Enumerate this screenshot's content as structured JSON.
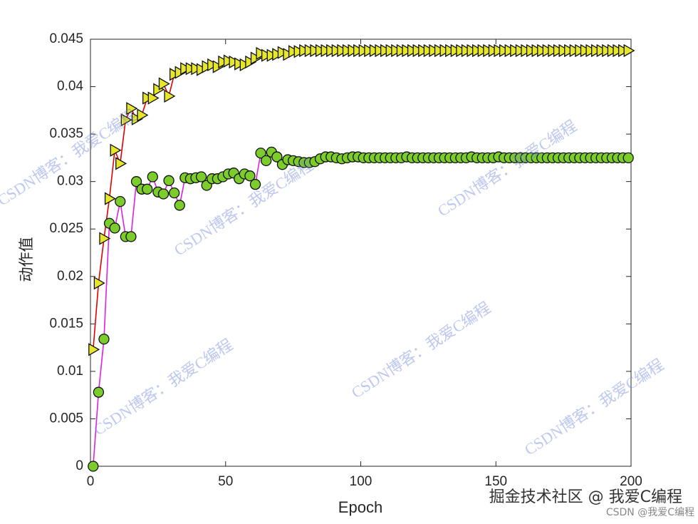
{
  "chart_data": {
    "type": "line",
    "xlabel": "Epoch",
    "ylabel": "动作值",
    "xlim": [
      0,
      200
    ],
    "xticks": [
      0,
      50,
      100,
      150,
      200
    ],
    "ylim": [
      0,
      0.045
    ],
    "yticks": [
      0,
      0.005,
      0.01,
      0.015,
      0.02,
      0.025,
      0.03,
      0.035,
      0.04,
      0.045
    ],
    "grid": false,
    "x": [
      1,
      3,
      5,
      7,
      9,
      11,
      13,
      15,
      17,
      19,
      21,
      23,
      25,
      27,
      29,
      31,
      33,
      35,
      37,
      39,
      41,
      43,
      45,
      47,
      49,
      51,
      53,
      55,
      57,
      59,
      61,
      63,
      65,
      67,
      69,
      71,
      73,
      75,
      77,
      79,
      81,
      83,
      85,
      87,
      89,
      91,
      93,
      95,
      97,
      99,
      101,
      103,
      105,
      107,
      109,
      111,
      113,
      115,
      117,
      119,
      121,
      123,
      125,
      127,
      129,
      131,
      133,
      135,
      137,
      139,
      141,
      143,
      145,
      147,
      149,
      151,
      153,
      155,
      157,
      159,
      161,
      163,
      165,
      167,
      169,
      171,
      173,
      175,
      177,
      179,
      181,
      183,
      185,
      187,
      189,
      191,
      193,
      195,
      197,
      199
    ],
    "series": [
      {
        "color": "#e00000",
        "marker": "triangle-right",
        "marker_color": "#e6e62a",
        "values": [
          0.0123,
          0.0193,
          0.024,
          0.0282,
          0.0333,
          0.0319,
          0.0365,
          0.0377,
          0.0366,
          0.037,
          0.0388,
          0.0388,
          0.0397,
          0.0403,
          0.039,
          0.0413,
          0.0415,
          0.0419,
          0.0419,
          0.0419,
          0.0418,
          0.0421,
          0.0423,
          0.0421,
          0.0426,
          0.0427,
          0.0426,
          0.0424,
          0.0423,
          0.0426,
          0.043,
          0.0435,
          0.0433,
          0.0433,
          0.0434,
          0.0436,
          0.0434,
          0.0437,
          0.0437,
          0.0438,
          0.0438,
          0.0438,
          0.0438,
          0.0438,
          0.0438,
          0.0438,
          0.0438,
          0.0438,
          0.0438,
          0.0438,
          0.0438,
          0.0438,
          0.0438,
          0.0438,
          0.0438,
          0.0438,
          0.0438,
          0.0438,
          0.0438,
          0.0438,
          0.0438,
          0.0438,
          0.0438,
          0.0438,
          0.0438,
          0.0438,
          0.0438,
          0.0438,
          0.0438,
          0.0438,
          0.0438,
          0.0438,
          0.0438,
          0.0438,
          0.0438,
          0.0438,
          0.0438,
          0.0438,
          0.0438,
          0.0438,
          0.0438,
          0.0438,
          0.0438,
          0.0438,
          0.0438,
          0.0438,
          0.0438,
          0.0438,
          0.0438,
          0.0438,
          0.0438,
          0.0438,
          0.0438,
          0.0438,
          0.0438,
          0.0438,
          0.0438,
          0.0438,
          0.0438,
          0.0438
        ]
      },
      {
        "color": "#e020e0",
        "marker": "circle",
        "marker_color": "#7ccd2c",
        "values": [
          0,
          0.0078,
          0.0134,
          0.0256,
          0.0251,
          0.0279,
          0.0242,
          0.0242,
          0.03,
          0.0292,
          0.0292,
          0.0305,
          0.0289,
          0.0287,
          0.0301,
          0.0288,
          0.0275,
          0.0304,
          0.0303,
          0.0304,
          0.0305,
          0.0296,
          0.0303,
          0.0303,
          0.0305,
          0.0308,
          0.0309,
          0.0303,
          0.0308,
          0.0306,
          0.0297,
          0.033,
          0.0322,
          0.0331,
          0.0326,
          0.0318,
          0.0323,
          0.0322,
          0.0321,
          0.032,
          0.032,
          0.0321,
          0.0324,
          0.0326,
          0.0326,
          0.0325,
          0.0324,
          0.0325,
          0.0326,
          0.0326,
          0.0325,
          0.0325,
          0.0325,
          0.0325,
          0.0325,
          0.0325,
          0.0325,
          0.0325,
          0.0326,
          0.0325,
          0.0325,
          0.0325,
          0.0325,
          0.0325,
          0.0325,
          0.0325,
          0.0325,
          0.0325,
          0.0325,
          0.0325,
          0.0326,
          0.0325,
          0.0325,
          0.0325,
          0.0325,
          0.0326,
          0.0325,
          0.0325,
          0.0325,
          0.0325,
          0.0325,
          0.0325,
          0.0325,
          0.0325,
          0.0325,
          0.0325,
          0.0325,
          0.0325,
          0.0325,
          0.0325,
          0.0325,
          0.0325,
          0.0325,
          0.0325,
          0.0325,
          0.0325,
          0.0325,
          0.0325,
          0.0325,
          0.0325
        ]
      }
    ]
  },
  "watermark": "CSDN博客：我爱C编程",
  "footer": {
    "juejin": "掘金技术社区 @ 我爱C编程",
    "csdn": "CSDN @我爱C编程"
  }
}
